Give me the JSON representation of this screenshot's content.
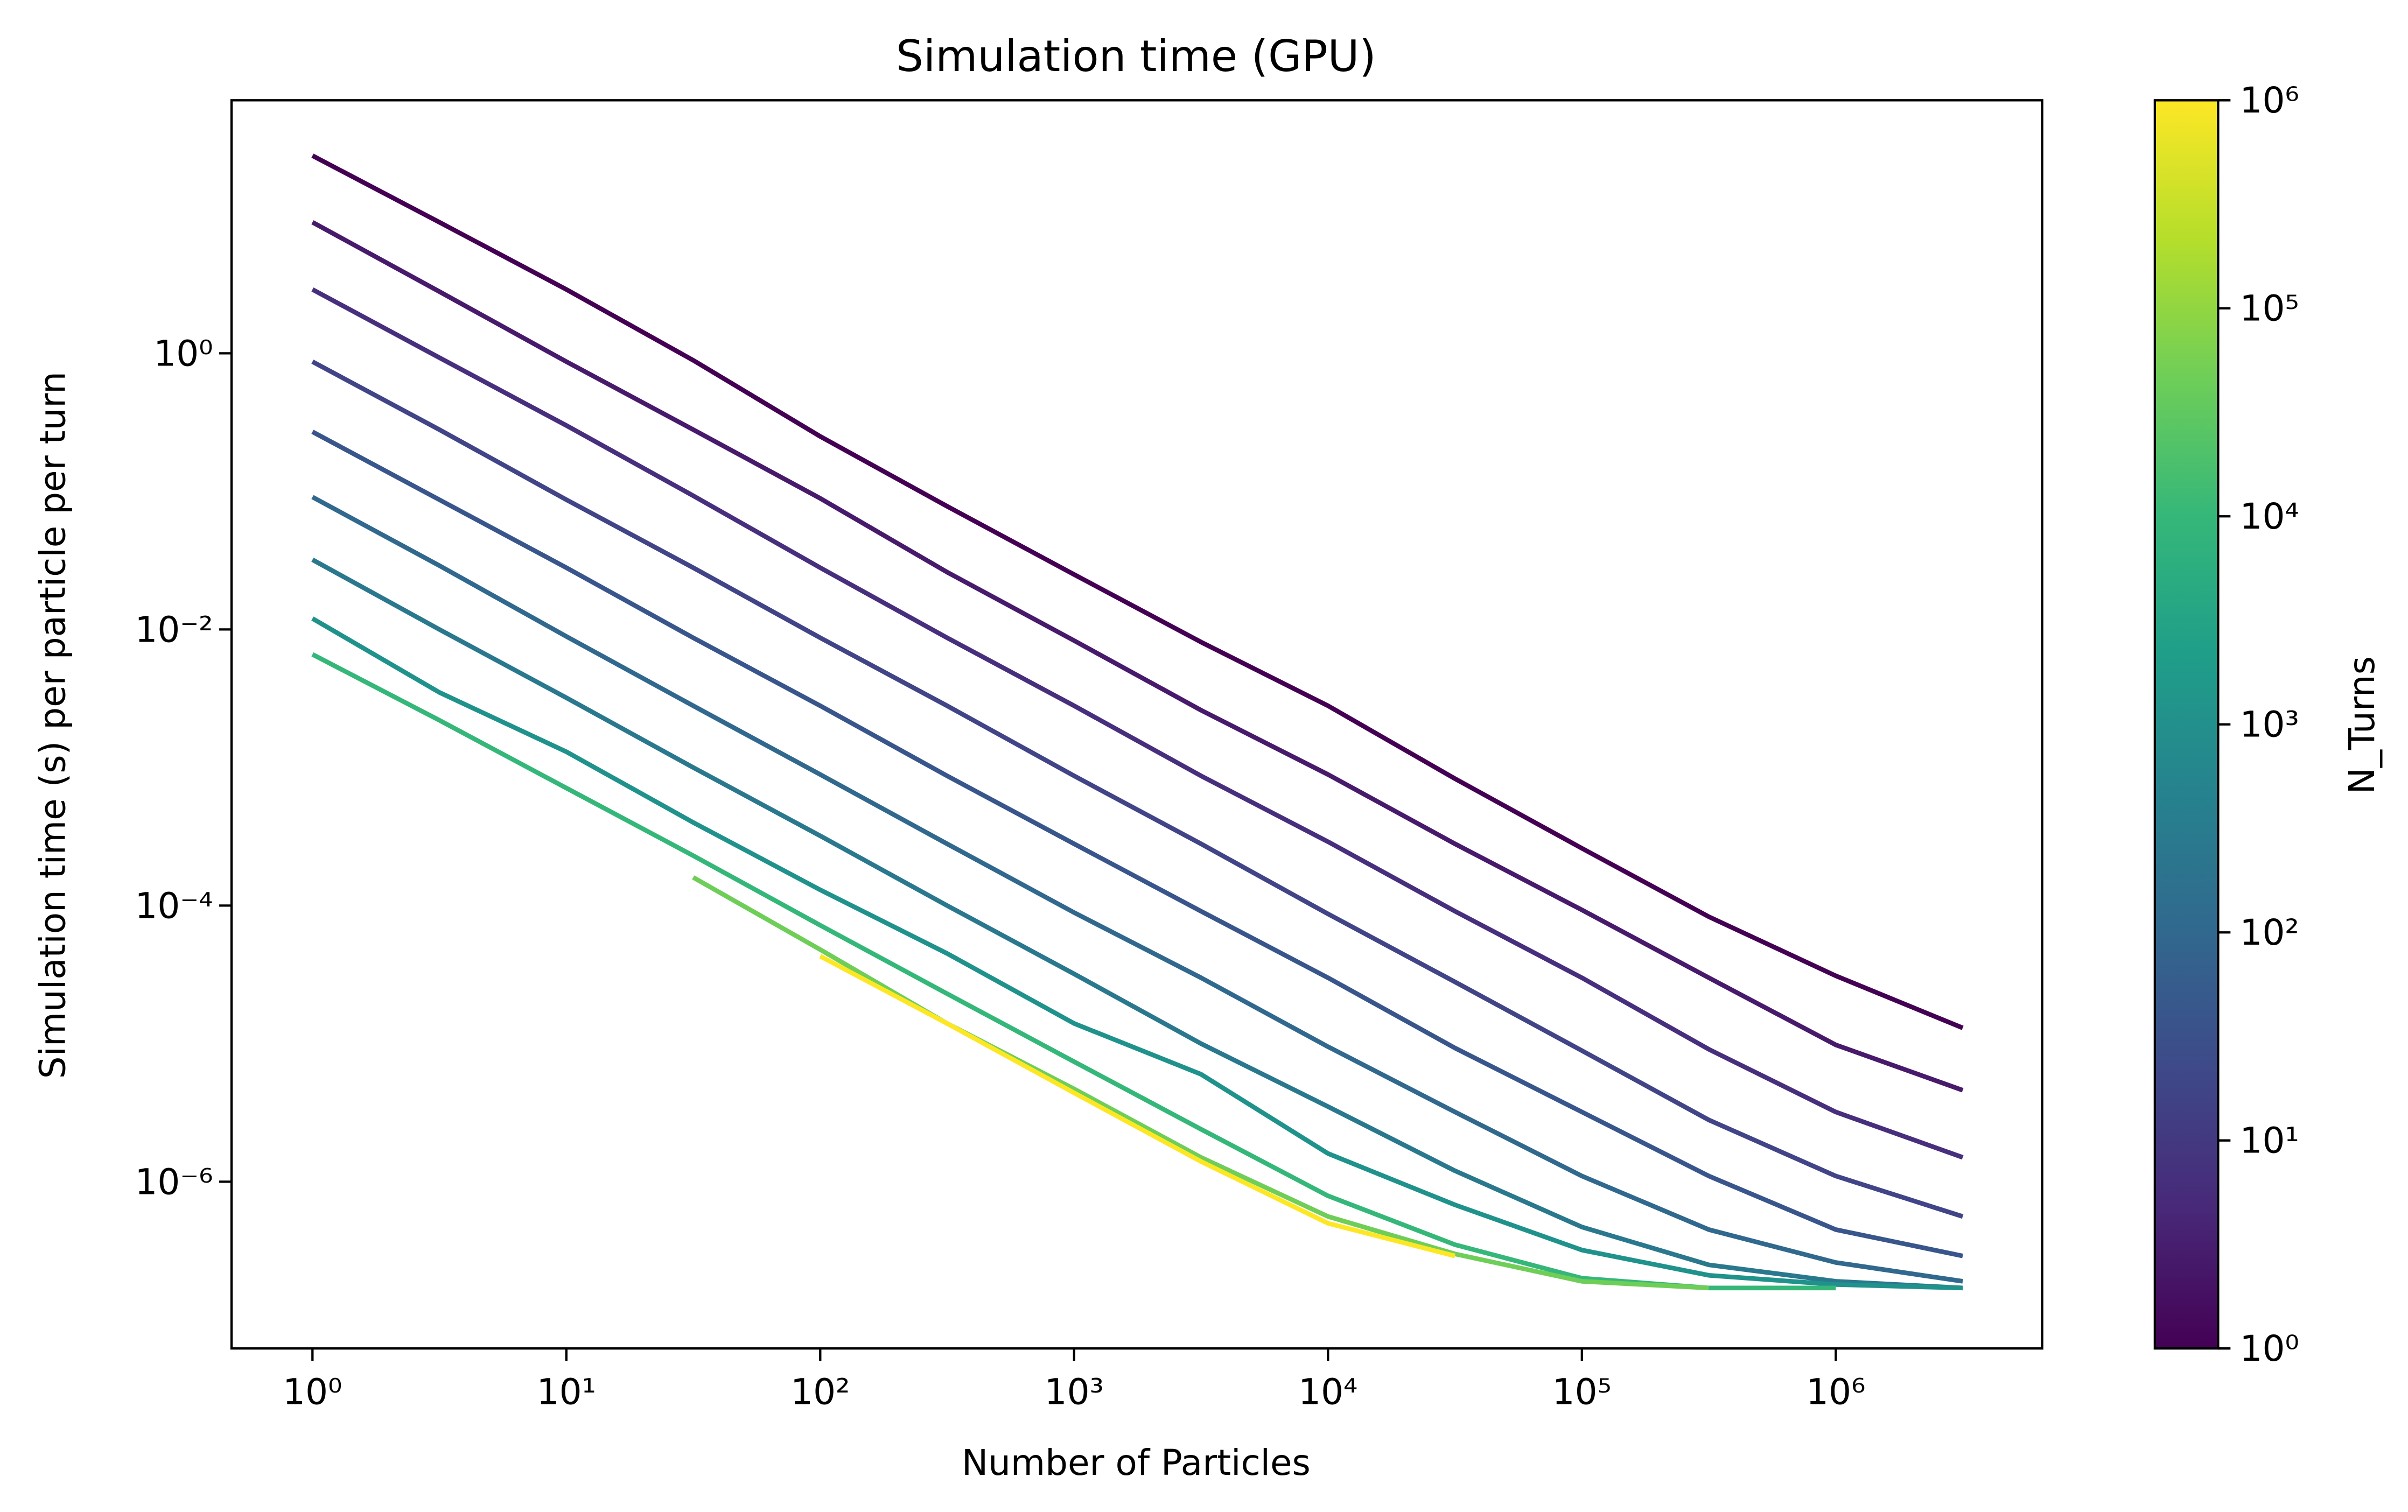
{
  "chart_data": {
    "type": "line",
    "title": "Simulation time (GPU)",
    "xlabel": "Number of Particles",
    "ylabel": "Simulation time (s) per particle per turn",
    "xscale": "log",
    "yscale": "log",
    "x": [
      1,
      3.16,
      10,
      31.6,
      100,
      316,
      1000,
      3162,
      10000,
      31623,
      100000,
      316228,
      1000000,
      3162278
    ],
    "series": [
      {
        "color": "#440154",
        "values": [
          27,
          8.9,
          2.9,
          0.89,
          0.25,
          0.078,
          0.025,
          0.0081,
          0.0028,
          0.00083,
          0.00026,
          8.3e-05,
          3.1e-05,
          1.3e-05
        ]
      },
      {
        "color": "#481a6c",
        "values": [
          8.9,
          2.8,
          0.87,
          0.28,
          0.089,
          0.026,
          0.0083,
          0.0026,
          0.00089,
          0.00028,
          9.3e-05,
          3e-05,
          9.8e-06,
          4.6e-06
        ]
      },
      {
        "color": "#472f7d",
        "values": [
          2.9,
          0.93,
          0.3,
          0.093,
          0.028,
          0.0087,
          0.0028,
          0.00087,
          0.00029,
          9.1e-05,
          3e-05,
          9.1e-06,
          3.2e-06,
          1.5e-06
        ]
      },
      {
        "color": "#414487",
        "values": [
          0.87,
          0.28,
          0.087,
          0.028,
          0.0087,
          0.0028,
          0.00087,
          0.00028,
          8.7e-05,
          2.8e-05,
          8.9e-06,
          2.8e-06,
          1.1e-06,
          5.6e-07
        ]
      },
      {
        "color": "#39568c",
        "values": [
          0.27,
          0.087,
          0.028,
          0.0087,
          0.0028,
          0.00087,
          0.00028,
          9.1e-05,
          3e-05,
          9.3e-06,
          3.2e-06,
          1.1e-06,
          4.5e-07,
          2.9e-07
        ]
      },
      {
        "color": "#31688e",
        "values": [
          0.091,
          0.029,
          0.0089,
          0.0028,
          0.00089,
          0.00028,
          8.9e-05,
          3e-05,
          9.5e-06,
          3.2e-06,
          1.1e-06,
          4.5e-07,
          2.6e-07,
          1.9e-07
        ]
      },
      {
        "color": "#2a788e",
        "values": [
          0.032,
          0.01,
          0.0032,
          0.001,
          0.00032,
          0.0001,
          3.2e-05,
          1e-05,
          3.5e-06,
          1.2e-06,
          4.7e-07,
          2.5e-07,
          1.9e-07,
          1.7e-07
        ]
      },
      {
        "color": "#20928c",
        "values": [
          0.012,
          0.0035,
          0.0013,
          0.0004,
          0.00013,
          4.5e-05,
          1.4e-05,
          6e-06,
          1.6e-06,
          6.8e-07,
          3.2e-07,
          2.1e-07,
          1.8e-07,
          1.7e-07
        ]
      },
      {
        "color": "#35b779",
        "values": [
          0.0066,
          0.0022,
          0.00071,
          0.00023,
          7.2e-05,
          2.3e-05,
          7.4e-06,
          2.4e-06,
          7.9e-07,
          3.5e-07,
          2e-07,
          1.7e-07,
          1.7e-07,
          null
        ]
      },
      {
        "color": "#6ece58",
        "values": [
          null,
          null,
          null,
          0.00016,
          4.8e-05,
          1.4e-05,
          4.7e-06,
          1.5e-06,
          5.6e-07,
          3e-07,
          1.9e-07,
          1.7e-07,
          null,
          null
        ]
      },
      {
        "color": "#fde725",
        "values": [
          null,
          null,
          null,
          null,
          4.3e-05,
          1.4e-05,
          4.4e-06,
          1.4e-06,
          5e-07,
          2.9e-07,
          null,
          null,
          null,
          null
        ]
      }
    ],
    "xlim": [
      0.48,
      6500000
    ],
    "ylim": [
      6.2e-08,
      68
    ],
    "xticks": [
      {
        "value": 1,
        "label": "10⁰"
      },
      {
        "value": 10,
        "label": "10¹"
      },
      {
        "value": 100,
        "label": "10²"
      },
      {
        "value": 1000,
        "label": "10³"
      },
      {
        "value": 10000,
        "label": "10⁴"
      },
      {
        "value": 100000,
        "label": "10⁵"
      },
      {
        "value": 1000000,
        "label": "10⁶"
      }
    ],
    "yticks": [
      {
        "value": 1,
        "label": "10⁰"
      },
      {
        "value": 0.01,
        "label": "10⁻²"
      },
      {
        "value": 0.0001,
        "label": "10⁻⁴"
      },
      {
        "value": 1e-06,
        "label": "10⁻⁶"
      }
    ],
    "colorbar": {
      "label": "N_Turns",
      "lim": [
        1,
        1000000
      ],
      "scale": "log",
      "colormap": [
        "#440154",
        "#482878",
        "#3e4989",
        "#31688e",
        "#26828e",
        "#1f9e89",
        "#35b779",
        "#6ece58",
        "#b5de2b",
        "#fde725"
      ],
      "ticks": [
        {
          "value": 1,
          "label": "10⁰"
        },
        {
          "value": 10,
          "label": "10¹"
        },
        {
          "value": 100,
          "label": "10²"
        },
        {
          "value": 1000,
          "label": "10³"
        },
        {
          "value": 10000,
          "label": "10⁴"
        },
        {
          "value": 100000,
          "label": "10⁵"
        },
        {
          "value": 1000000,
          "label": "10⁶"
        }
      ]
    }
  }
}
